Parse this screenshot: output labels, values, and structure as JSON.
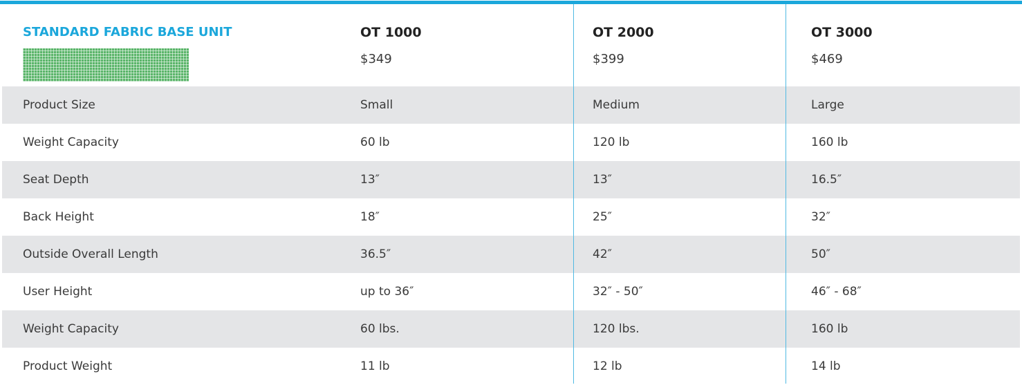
{
  "header": {
    "title": "STANDARD FABRIC BASE UNIT",
    "products": [
      {
        "name": "OT 1000",
        "price": "$349"
      },
      {
        "name": "OT 2000",
        "price": "$399"
      },
      {
        "name": "OT 3000",
        "price": "$469"
      }
    ]
  },
  "table": {
    "rows": [
      [
        "Product Size",
        "Small",
        "Medium",
        "Large"
      ],
      [
        "Weight Capacity",
        "60 lb",
        "120 lb",
        "160 lb"
      ],
      [
        "Seat Depth",
        "13″",
        "13″",
        "16.5″"
      ],
      [
        "Back Height",
        "18″",
        "25″",
        "32″"
      ],
      [
        "Outside Overall Length",
        "36.5″",
        "42″",
        "50″"
      ],
      [
        "User Height",
        "up to 36″",
        "32″ - 50″",
        "46″ - 68″"
      ],
      [
        "Weight Capacity",
        "60 lbs.",
        "120 lbs.",
        "160 lb"
      ],
      [
        "Product Weight",
        "11 lb",
        "12 lb",
        "14 lb"
      ]
    ]
  }
}
